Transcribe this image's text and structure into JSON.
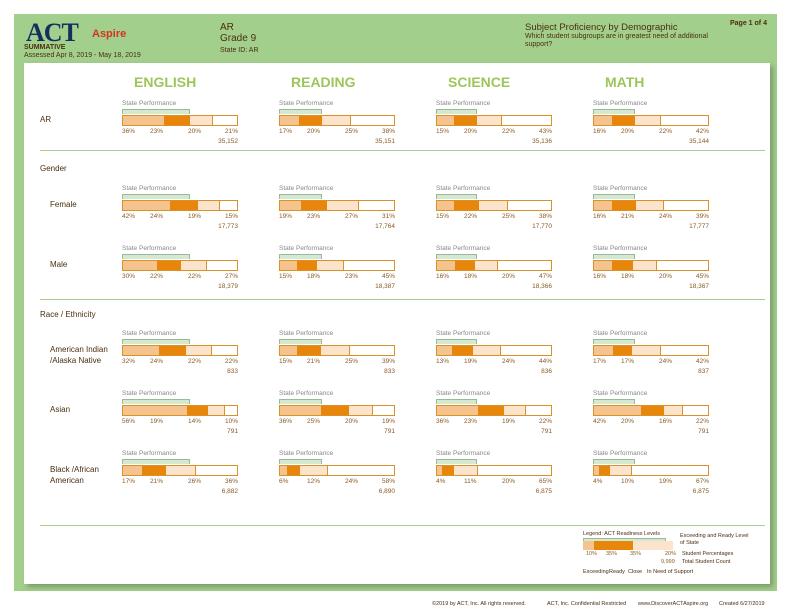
{
  "header": {
    "logo_act": "ACT",
    "logo_aspire": "Aspire",
    "assessment_type": "SUMMATIVE",
    "assessed": "Assessed Apr 8, 2019 - May 18, 2019",
    "state": "AR",
    "grade": "Grade 9",
    "state_id": "State ID: AR",
    "report_title": "Subject Proficiency by Demographic",
    "report_question": "Which student subgroups are in greatest need of additional support?",
    "page": "Page 1 of 4"
  },
  "subjects": [
    "ENGLISH",
    "READING",
    "SCIENCE",
    "MATH"
  ],
  "state_performance_label": "State Performance",
  "state_performance_pct": [
    59,
    37,
    35,
    36
  ],
  "groups": [
    {
      "title": "",
      "rows": [
        {
          "label": "AR",
          "cells": [
            {
              "p": [
                36,
                23,
                20,
                21
              ],
              "n": "35,152"
            },
            {
              "p": [
                17,
                20,
                25,
                38
              ],
              "n": "35,151"
            },
            {
              "p": [
                15,
                20,
                22,
                43
              ],
              "n": "35,136"
            },
            {
              "p": [
                16,
                20,
                22,
                42
              ],
              "n": "35,144"
            }
          ]
        }
      ]
    },
    {
      "title": "Gender",
      "rows": [
        {
          "label": "Female",
          "cells": [
            {
              "p": [
                42,
                24,
                19,
                15
              ],
              "n": "17,773"
            },
            {
              "p": [
                19,
                23,
                27,
                31
              ],
              "n": "17,764"
            },
            {
              "p": [
                15,
                22,
                25,
                38
              ],
              "n": "17,770"
            },
            {
              "p": [
                16,
                21,
                24,
                39
              ],
              "n": "17,777"
            }
          ]
        },
        {
          "label": "Male",
          "cells": [
            {
              "p": [
                30,
                22,
                22,
                27
              ],
              "n": "18,379"
            },
            {
              "p": [
                15,
                18,
                23,
                45
              ],
              "n": "18,387"
            },
            {
              "p": [
                16,
                18,
                20,
                47
              ],
              "n": "18,366"
            },
            {
              "p": [
                16,
                18,
                20,
                45
              ],
              "n": "18,367"
            }
          ]
        }
      ]
    },
    {
      "title": "Race / Ethnicity",
      "rows": [
        {
          "label": "American Indian /Alaska Native",
          "cells": [
            {
              "p": [
                32,
                24,
                22,
                22
              ],
              "n": "833"
            },
            {
              "p": [
                15,
                21,
                25,
                39
              ],
              "n": "833"
            },
            {
              "p": [
                13,
                19,
                24,
                44
              ],
              "n": "836"
            },
            {
              "p": [
                17,
                17,
                24,
                42
              ],
              "n": "837"
            }
          ]
        },
        {
          "label": "Asian",
          "cells": [
            {
              "p": [
                56,
                19,
                14,
                10
              ],
              "n": "791"
            },
            {
              "p": [
                36,
                25,
                20,
                19
              ],
              "n": "791"
            },
            {
              "p": [
                36,
                23,
                19,
                22
              ],
              "n": "791"
            },
            {
              "p": [
                42,
                20,
                16,
                22
              ],
              "n": "791"
            }
          ]
        },
        {
          "label": "Black /African American",
          "cells": [
            {
              "p": [
                17,
                21,
                26,
                36
              ],
              "n": "6,882"
            },
            {
              "p": [
                6,
                12,
                24,
                58
              ],
              "n": "6,890"
            },
            {
              "p": [
                4,
                11,
                20,
                65
              ],
              "n": "6,875"
            },
            {
              "p": [
                4,
                10,
                19,
                67
              ],
              "n": "6,875"
            }
          ]
        }
      ]
    }
  ],
  "legend": {
    "title": "Legend: ACT Readiness Levels",
    "p": [
      "10%",
      "35%",
      "35%",
      "20%"
    ],
    "count": "9,999",
    "exceeding_state": "Exceeding and Ready Level of State",
    "student_pct": "Student Percentages",
    "total_count": "Total Student Count",
    "levels": [
      "Exceeding",
      "Ready",
      "Close",
      "In Need of Support"
    ]
  },
  "footer": [
    "©2019 by ACT, Inc. All rights reserved.",
    "ACT, Inc. Confidential Restricted",
    "www.DiscoverACTAspire.org",
    "Created 6/27/2019"
  ],
  "colors": {
    "frame": "#a3cf8c",
    "subject": "#9dc65a",
    "exceeding": "#f5c48e",
    "ready": "#e8860b",
    "close": "#fbe3cc",
    "need": "#ffffff"
  }
}
